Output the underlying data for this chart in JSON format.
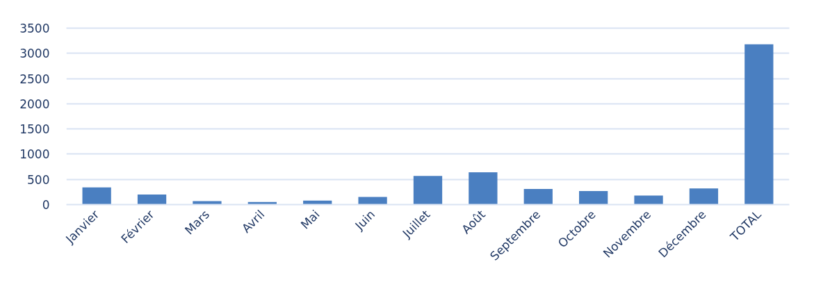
{
  "chart_data": {
    "type": "bar",
    "categories": [
      "Janvier",
      "Février",
      "Mars",
      "Avril",
      "Mai",
      "Juin",
      "Juillet",
      "Août",
      "Septembre",
      "Octobre",
      "Novembre",
      "Décembre",
      "TOTAL"
    ],
    "values": [
      340,
      200,
      70,
      50,
      80,
      150,
      570,
      640,
      310,
      270,
      180,
      320,
      3180
    ],
    "color": "#4a7fc1",
    "ylim": [
      0,
      3500
    ],
    "yticks": [
      0,
      500,
      1000,
      1500,
      2000,
      2500,
      3000,
      3500
    ],
    "grid": "y"
  }
}
